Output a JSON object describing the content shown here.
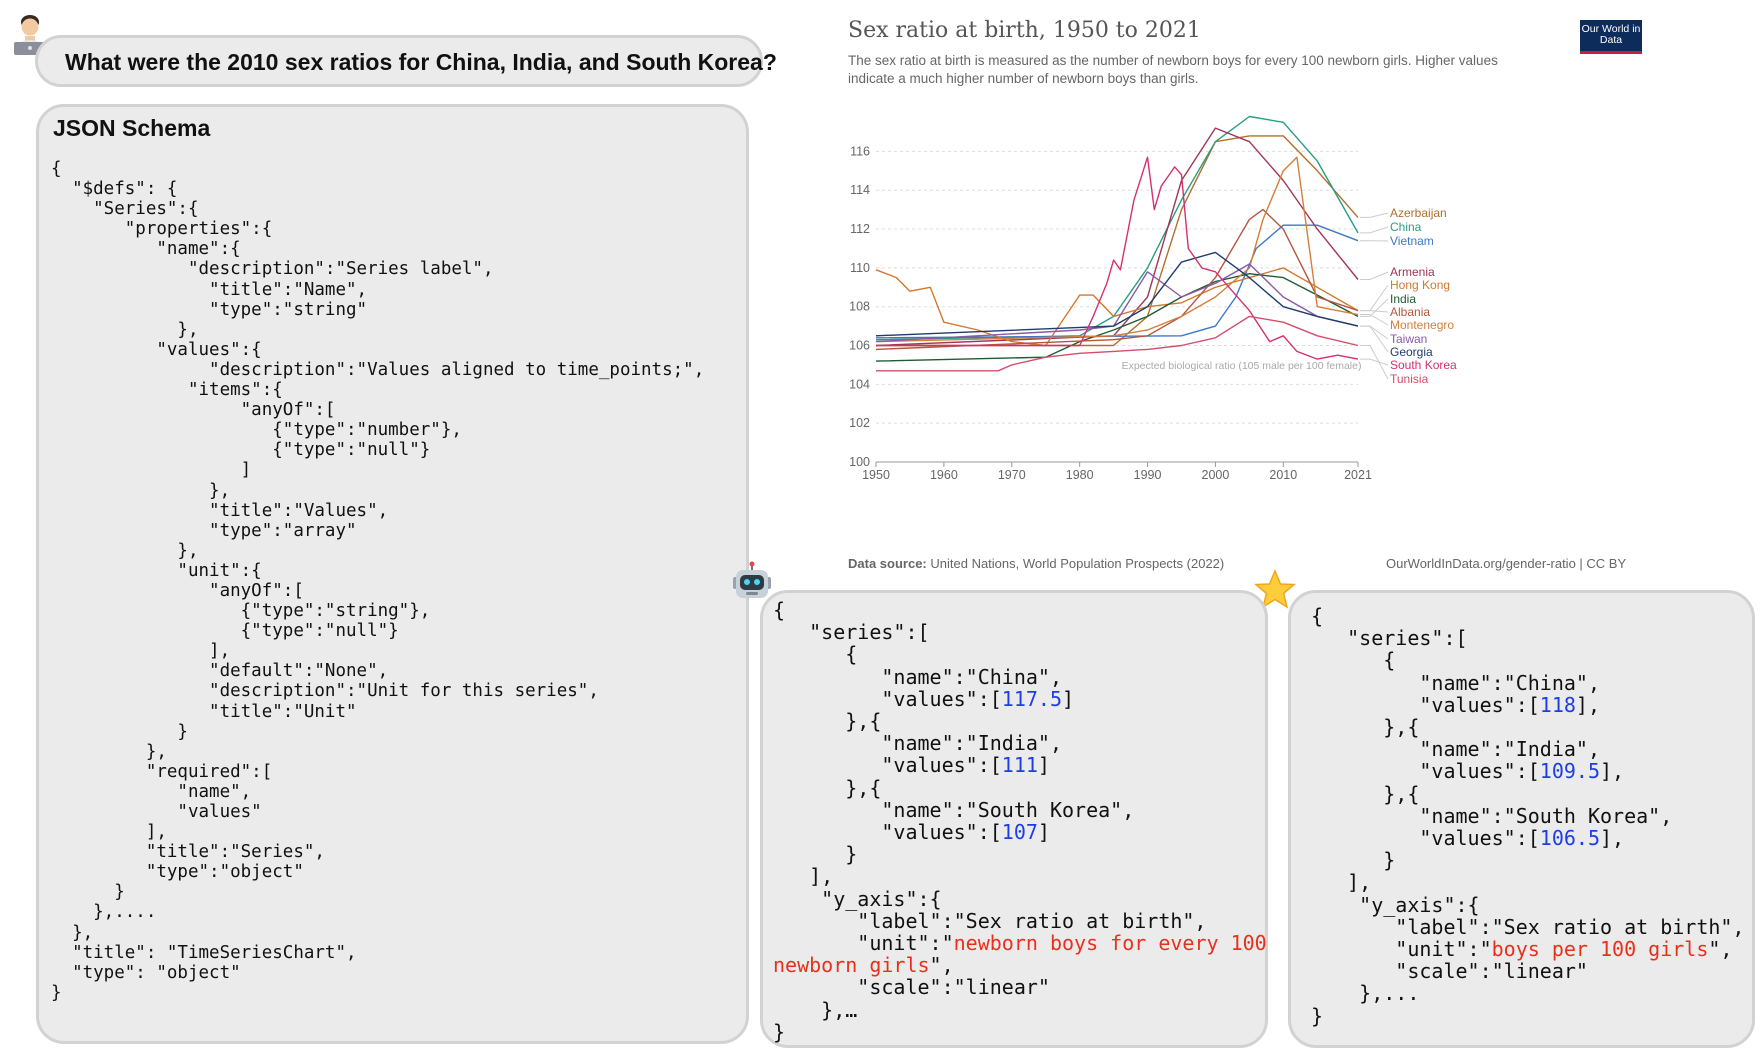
{
  "question": {
    "text": "What were the 2010 sex ratios for China, India, and South Korea?"
  },
  "schema_panel": {
    "title": "JSON Schema",
    "lines": [
      "{",
      "  \"$defs\": {",
      "    \"Series\":{",
      "       \"properties\":{",
      "          \"name\":{",
      "             \"description\":\"Series label\",",
      "               \"title\":\"Name\",",
      "               \"type\":\"string\"",
      "            },",
      "          \"values\":{",
      "               \"description\":\"Values aligned to time_points;\",",
      "             \"items\":{",
      "                  \"anyOf\":[",
      "                     {\"type\":\"number\"},",
      "                     {\"type\":\"null\"}",
      "                  ]",
      "               },",
      "               \"title\":\"Values\",",
      "               \"type\":\"array\"",
      "            },",
      "            \"unit\":{",
      "               \"anyOf\":[",
      "                  {\"type\":\"string\"},",
      "                  {\"type\":\"null\"}",
      "               ],",
      "               \"default\":\"None\",",
      "               \"description\":\"Unit for this series\",",
      "               \"title\":\"Unit\"",
      "            }",
      "         },",
      "         \"required\":[",
      "            \"name\",",
      "            \"values\"",
      "         ],",
      "         \"title\":\"Series\",",
      "         \"type\":\"object\"",
      "      }",
      "    },....",
      "  },",
      "  \"title\": \"TimeSeriesChart\",",
      "  \"type\": \"object\"",
      "}"
    ]
  },
  "chart": {
    "title": "Sex ratio at birth, 1950 to 2021",
    "subtitle": "The sex ratio at birth is measured as the number of newborn boys for every 100 newborn girls. Higher values indicate a much higher number of newborn boys than girls.",
    "logo": "Our World in Data",
    "source_label": "Data source:",
    "source_text": "United Nations, World Population Prospects (2022)",
    "credit": "OurWorldInData.org/gender-ratio | CC BY",
    "reference_line_label": "Expected biological ratio (105 male per 100 female)"
  },
  "chart_data": {
    "type": "line",
    "title": "Sex ratio at birth, 1950 to 2021",
    "xlim": [
      1950,
      2021
    ],
    "ylim": [
      100,
      117
    ],
    "x_ticks": [
      1950,
      1960,
      1970,
      1980,
      1990,
      2000,
      2010,
      2021
    ],
    "y_ticks": [
      100,
      102,
      104,
      106,
      108,
      110,
      112,
      114,
      116
    ],
    "grid": true,
    "legend": "right",
    "reference_value": 105,
    "series": [
      {
        "name": "Azerbaijan",
        "color": "#b26f2b",
        "x": [
          1950,
          1985,
          1990,
          1995,
          2000,
          2005,
          2010,
          2015,
          2021
        ],
        "values": [
          106.0,
          106.0,
          107.5,
          113.0,
          116.5,
          116.8,
          116.8,
          115.0,
          112.6
        ]
      },
      {
        "name": "China",
        "color": "#2a9d80",
        "x": [
          1950,
          1980,
          1985,
          1990,
          1995,
          2000,
          2005,
          2010,
          2015,
          2021
        ],
        "values": [
          106.3,
          106.5,
          107.5,
          110.0,
          113.5,
          116.5,
          117.8,
          117.5,
          115.5,
          111.8
        ]
      },
      {
        "name": "Vietnam",
        "color": "#3b78c6",
        "x": [
          1950,
          1995,
          2000,
          2003,
          2006,
          2010,
          2015,
          2021
        ],
        "values": [
          106.4,
          106.5,
          107.0,
          108.5,
          111.0,
          112.2,
          112.2,
          111.4
        ]
      },
      {
        "name": "Armenia",
        "color": "#a2355a",
        "x": [
          1950,
          1985,
          1990,
          1995,
          2000,
          2005,
          2010,
          2015,
          2021
        ],
        "values": [
          106.0,
          106.5,
          108.5,
          114.5,
          117.2,
          116.5,
          114.5,
          112.0,
          109.4
        ]
      },
      {
        "name": "Hong Kong",
        "color": "#d07a2e",
        "x": [
          1950,
          1953,
          1955,
          1958,
          1960,
          1965,
          1970,
          1975,
          1980,
          1982,
          1985,
          1990,
          1995,
          2000,
          2005,
          2010,
          2015,
          2021
        ],
        "values": [
          109.9,
          109.5,
          108.8,
          109.0,
          107.2,
          106.8,
          106.2,
          106.0,
          108.6,
          108.6,
          107.5,
          108.0,
          108.2,
          109.0,
          109.5,
          110.0,
          109.0,
          107.8
        ]
      },
      {
        "name": "India",
        "color": "#1f5c34",
        "x": [
          1950,
          1975,
          1980,
          1985,
          1990,
          1995,
          2000,
          2005,
          2010,
          2015,
          2021
        ],
        "values": [
          105.2,
          105.4,
          106.2,
          106.8,
          107.5,
          108.5,
          109.3,
          109.7,
          109.5,
          108.6,
          107.5
        ]
      },
      {
        "name": "Albania",
        "color": "#b5573e",
        "x": [
          1950,
          1985,
          1990,
          1995,
          2000,
          2005,
          2007,
          2010,
          2015,
          2021
        ],
        "values": [
          105.8,
          106.3,
          106.5,
          107.5,
          109.5,
          112.5,
          113.0,
          112.0,
          108.5,
          107.8
        ]
      },
      {
        "name": "Montenegro",
        "color": "#d47f3a",
        "x": [
          1950,
          1985,
          1990,
          1995,
          2000,
          2005,
          2007,
          2010,
          2012,
          2015,
          2021
        ],
        "values": [
          106.2,
          106.5,
          106.8,
          107.5,
          108.5,
          110.0,
          112.5,
          115.0,
          115.7,
          108.0,
          107.6
        ]
      },
      {
        "name": "Taiwan",
        "color": "#8a59a8",
        "x": [
          1950,
          1980,
          1985,
          1990,
          1995,
          2000,
          2005,
          2010,
          2015,
          2021
        ],
        "values": [
          106.2,
          106.8,
          107.0,
          109.8,
          108.5,
          109.2,
          110.2,
          108.5,
          107.5,
          107.0
        ]
      },
      {
        "name": "Georgia",
        "color": "#1f3c6e",
        "x": [
          1950,
          1985,
          1990,
          1995,
          2000,
          2005,
          2010,
          2015,
          2021
        ],
        "values": [
          106.5,
          107.0,
          108.0,
          110.3,
          110.8,
          109.5,
          108.0,
          107.5,
          107.0
        ]
      },
      {
        "name": "South Korea",
        "color": "#d4306f",
        "x": [
          1950,
          1980,
          1982,
          1984,
          1985,
          1986,
          1988,
          1990,
          1991,
          1992,
          1994,
          1995,
          1996,
          1998,
          2000,
          2005,
          2008,
          2010,
          2012,
          2015,
          2018,
          2021
        ],
        "values": [
          106.0,
          106.0,
          107.5,
          109.2,
          110.4,
          109.9,
          113.5,
          115.7,
          113.0,
          114.2,
          115.2,
          114.8,
          111.0,
          110.0,
          109.8,
          107.8,
          106.2,
          106.5,
          105.7,
          105.3,
          105.5,
          105.3
        ]
      },
      {
        "name": "Tunisia",
        "color": "#d24e6c",
        "x": [
          1950,
          1960,
          1968,
          1970,
          1975,
          1980,
          1985,
          1990,
          1995,
          2000,
          2005,
          2010,
          2015,
          2021
        ],
        "values": [
          104.7,
          104.7,
          104.7,
          105.0,
          105.4,
          105.6,
          105.7,
          105.8,
          106.0,
          106.4,
          107.5,
          107.2,
          106.5,
          106.0
        ]
      }
    ]
  },
  "model_answer": {
    "lines": [
      [
        {
          "t": "{"
        }
      ],
      [
        {
          "t": "   \"series\":["
        }
      ],
      [
        {
          "t": "      {"
        }
      ],
      [
        {
          "t": "         \"name\":\"China\","
        }
      ],
      [
        {
          "t": "         \"values\":["
        },
        {
          "t": "117.5",
          "c": "num"
        },
        {
          "t": "]"
        }
      ],
      [
        {
          "t": "      },{"
        }
      ],
      [
        {
          "t": "         \"name\":\"India\","
        }
      ],
      [
        {
          "t": "         \"values\":["
        },
        {
          "t": "111",
          "c": "num"
        },
        {
          "t": "]"
        }
      ],
      [
        {
          "t": "      },{"
        }
      ],
      [
        {
          "t": "         \"name\":\"South Korea\","
        }
      ],
      [
        {
          "t": "         \"values\":["
        },
        {
          "t": "107",
          "c": "num"
        },
        {
          "t": "]"
        }
      ],
      [
        {
          "t": "      }"
        }
      ],
      [
        {
          "t": "   ],"
        }
      ],
      [
        {
          "t": "    \"y_axis\":{"
        }
      ],
      [
        {
          "t": "       \"label\":\"Sex ratio at birth\","
        }
      ],
      [
        {
          "t": "       \"unit\":\""
        },
        {
          "t": "newborn boys for every 100",
          "c": "red"
        }
      ],
      [
        {
          "t": "newborn girls",
          "c": "red"
        },
        {
          "t": "\","
        }
      ],
      [
        {
          "t": "       \"scale\":\"linear\""
        }
      ],
      [
        {
          "t": "    },…"
        }
      ],
      [
        {
          "t": "}"
        }
      ]
    ]
  },
  "reference_answer": {
    "lines": [
      [
        {
          "t": "{"
        }
      ],
      [
        {
          "t": "   \"series\":["
        }
      ],
      [
        {
          "t": "      {"
        }
      ],
      [
        {
          "t": "         \"name\":\"China\","
        }
      ],
      [
        {
          "t": "         \"values\":["
        },
        {
          "t": "118",
          "c": "num"
        },
        {
          "t": "],"
        }
      ],
      [
        {
          "t": "      },{"
        }
      ],
      [
        {
          "t": "         \"name\":\"India\","
        }
      ],
      [
        {
          "t": "         \"values\":["
        },
        {
          "t": "109.5",
          "c": "num"
        },
        {
          "t": "],"
        }
      ],
      [
        {
          "t": "      },{"
        }
      ],
      [
        {
          "t": "         \"name\":\"South Korea\","
        }
      ],
      [
        {
          "t": "         \"values\":["
        },
        {
          "t": "106.5",
          "c": "num"
        },
        {
          "t": "],"
        }
      ],
      [
        {
          "t": "      }"
        }
      ],
      [
        {
          "t": "   ],"
        }
      ],
      [
        {
          "t": "    \"y_axis\":{"
        }
      ],
      [
        {
          "t": "       \"label\":\"Sex ratio at birth\","
        }
      ],
      [
        {
          "t": "       \"unit\":\""
        },
        {
          "t": "boys per 100 girls",
          "c": "red"
        },
        {
          "t": "\","
        }
      ],
      [
        {
          "t": "       \"scale\":\"linear\""
        }
      ],
      [
        {
          "t": "    },..."
        }
      ],
      [
        {
          "t": "}"
        }
      ]
    ]
  }
}
